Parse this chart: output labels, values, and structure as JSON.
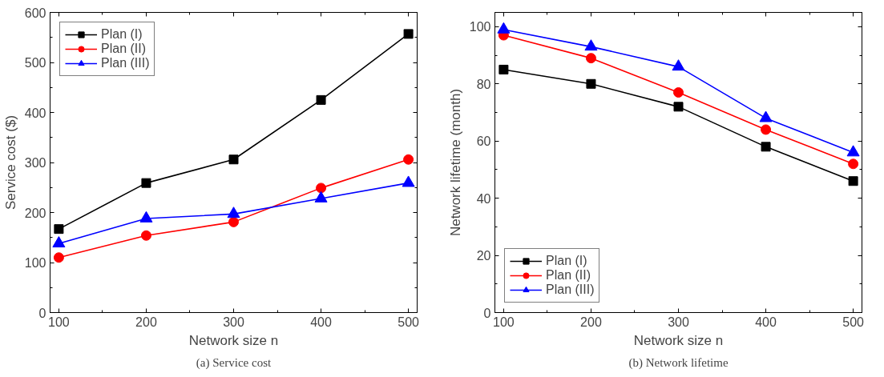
{
  "chart_data": [
    {
      "type": "line",
      "title": "(a) Service cost",
      "xlabel": "Network size n",
      "ylabel": "Service cost ($)",
      "x": [
        100,
        200,
        300,
        400,
        500
      ],
      "xlim": [
        90,
        510
      ],
      "ylim": [
        0,
        600
      ],
      "xticks": [
        100,
        200,
        300,
        400,
        500
      ],
      "yticks": [
        0,
        100,
        200,
        300,
        400,
        500,
        600
      ],
      "grid": false,
      "legend": "top left",
      "line_style": "solid",
      "series": [
        {
          "name": "Plan (I)",
          "color": "#000000",
          "marker": "square",
          "values": [
            167,
            259,
            306,
            425,
            557
          ]
        },
        {
          "name": "Plan (II)",
          "color": "#ff0000",
          "marker": "circle",
          "values": [
            110,
            154,
            181,
            249,
            306
          ]
        },
        {
          "name": "Plan (III)",
          "color": "#0000ff",
          "marker": "triangle",
          "values": [
            138,
            188,
            197,
            228,
            259
          ]
        }
      ]
    },
    {
      "type": "line",
      "title": "(b) Network lifetime",
      "xlabel": "Network size n",
      "ylabel": "Network lifetime (month)",
      "x": [
        100,
        200,
        300,
        400,
        500
      ],
      "xlim": [
        90,
        510
      ],
      "ylim": [
        0,
        105
      ],
      "xticks": [
        100,
        200,
        300,
        400,
        500
      ],
      "yticks": [
        0,
        20,
        40,
        60,
        80,
        100
      ],
      "grid": false,
      "legend": "bottom left",
      "line_style": "solid",
      "series": [
        {
          "name": "Plan (I)",
          "color": "#000000",
          "marker": "square",
          "values": [
            85,
            80,
            72,
            58,
            46
          ]
        },
        {
          "name": "Plan (II)",
          "color": "#ff0000",
          "marker": "circle",
          "values": [
            97,
            89,
            77,
            64,
            52
          ]
        },
        {
          "name": "Plan (III)",
          "color": "#0000ff",
          "marker": "triangle",
          "values": [
            99,
            93,
            86,
            68,
            56
          ]
        }
      ]
    }
  ]
}
